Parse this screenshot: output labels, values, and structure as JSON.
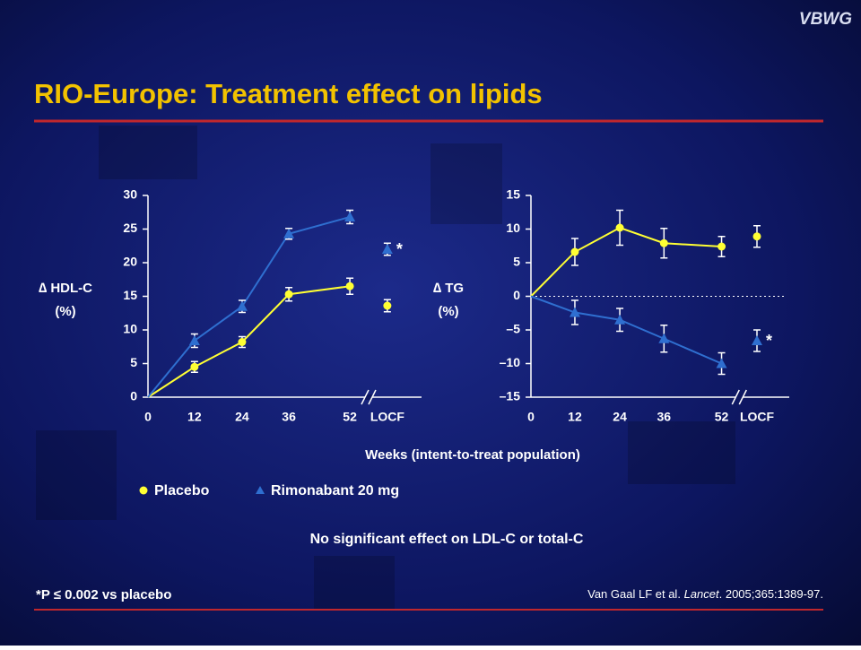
{
  "brand": "VBWG",
  "title": "RIO-Europe: Treatment effect on lipids",
  "x_label": "Weeks (intent-to-treat population)",
  "note": "No significant effect on LDL-C or total-C",
  "footnote": "*P ≤ 0.002 vs placebo",
  "citation": {
    "authors": "Van Gaal LF et al.",
    "journal": "Lancet",
    "rest": ". 2005;365:1389-97."
  },
  "chart_data": [
    {
      "type": "line",
      "y_label": [
        "∆ HDL-C",
        "(%)"
      ],
      "categories": [
        "0",
        "12",
        "24",
        "36",
        "52",
        "LOCF"
      ],
      "ylim": [
        0,
        30
      ],
      "yticks": [
        0,
        5,
        10,
        15,
        20,
        25,
        30
      ],
      "annotation": "*",
      "series": [
        {
          "name": "Placebo",
          "color": "#ffff33",
          "marker": "circle",
          "values": [
            0,
            4.5,
            8.2,
            15.3,
            16.5,
            13.6
          ],
          "errors": [
            0,
            0.8,
            0.8,
            1.0,
            1.2,
            0.9
          ]
        },
        {
          "name": "Rimonabant 20 mg",
          "color": "#2f6fd0",
          "marker": "triangle",
          "values": [
            0,
            8.4,
            13.5,
            24.3,
            26.8,
            22.0
          ],
          "errors": [
            0,
            1.0,
            0.9,
            0.8,
            1.0,
            0.9
          ]
        }
      ]
    },
    {
      "type": "line",
      "y_label": [
        "∆ TG",
        "(%)"
      ],
      "categories": [
        "0",
        "12",
        "24",
        "36",
        "52",
        "LOCF"
      ],
      "ylim": [
        -15,
        15
      ],
      "yticks": [
        {
          "value": -15,
          "label": "–15"
        },
        {
          "value": -10,
          "label": "–10"
        },
        {
          "value": -5,
          "label": "–5"
        },
        0,
        5,
        10,
        15
      ],
      "annotation": "*",
      "zero_line": true,
      "series": [
        {
          "color": "#ffff33",
          "marker": "circle",
          "values": [
            0,
            6.6,
            10.2,
            7.9,
            7.4,
            8.9
          ],
          "errors": [
            0,
            2.0,
            2.6,
            2.2,
            1.5,
            1.6
          ]
        },
        {
          "color": "#2f6fd0",
          "marker": "triangle",
          "values": [
            0,
            -2.4,
            -3.5,
            -6.3,
            -10.0,
            -6.6
          ],
          "errors": [
            0,
            1.8,
            1.7,
            2.0,
            1.6,
            1.6
          ]
        }
      ]
    }
  ]
}
